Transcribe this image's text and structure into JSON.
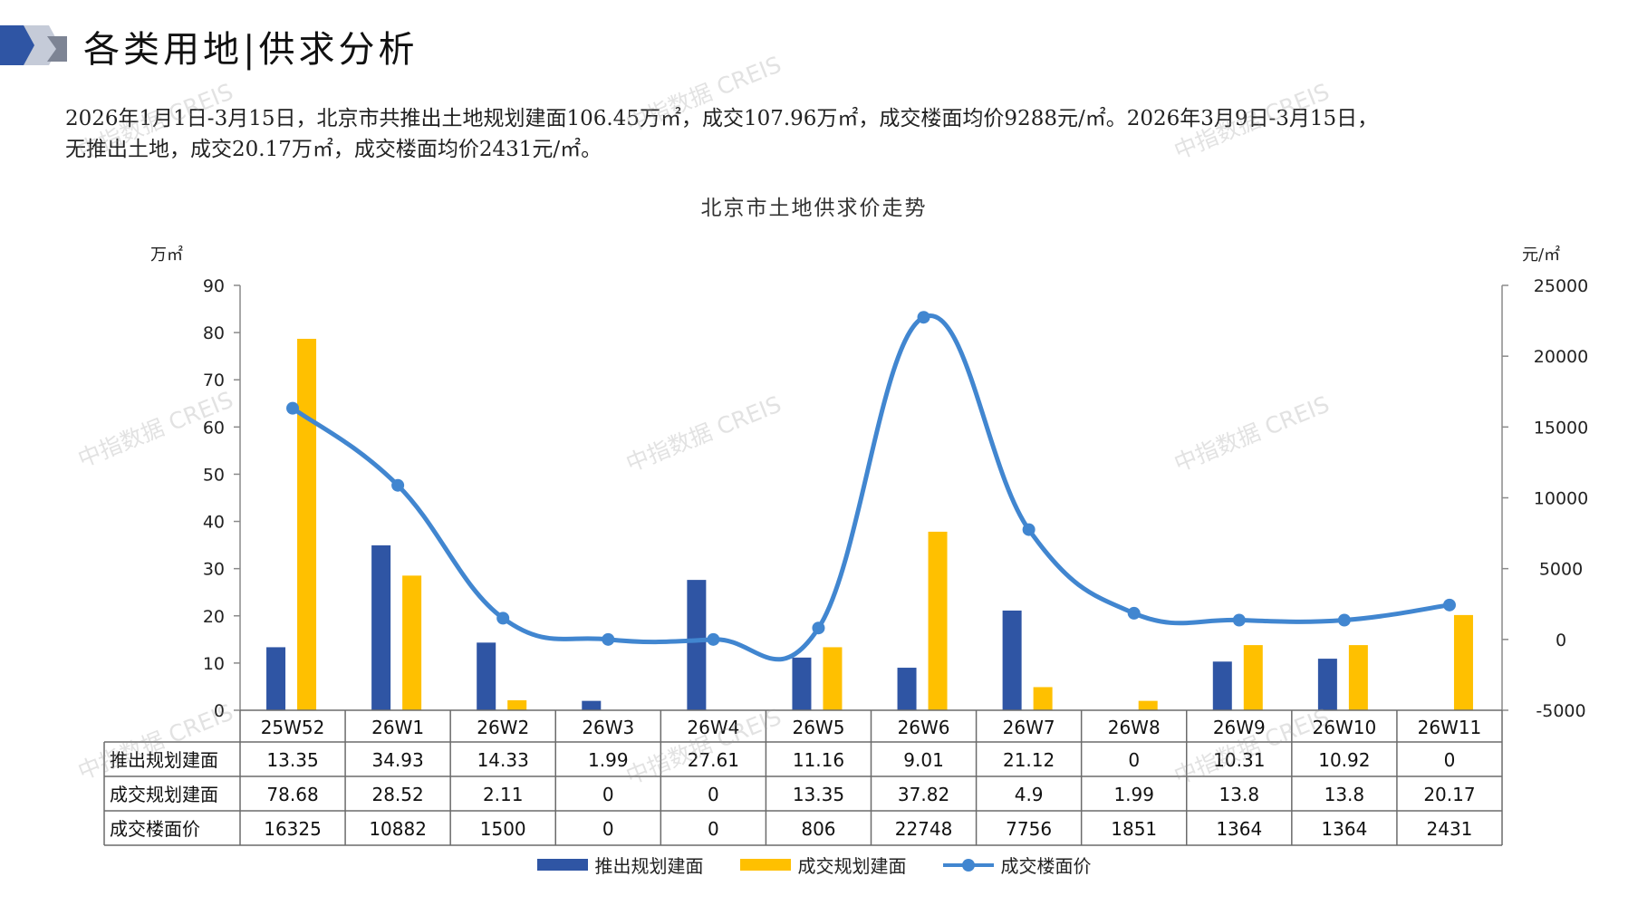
{
  "header": {
    "title": "各类用地|供求分析"
  },
  "summary": {
    "line1": "2026年1月1日-3月15日，北京市共推出土地规划建面106.45万㎡，成交107.96万㎡，成交楼面均价9288元/㎡。2026年3月9日-3月15日，",
    "line2": "无推出土地，成交20.17万㎡，成交楼面均价2431元/㎡。"
  },
  "watermark": "中指数据 CREIS",
  "colors": {
    "supply": "#2f55a4",
    "transaction": "#ffc000",
    "price": "#4186d0",
    "header_accent": "#2f55a4"
  },
  "chart_data": {
    "type": "bar",
    "title": "北京市土地供求价走势",
    "ylabel_left": "万㎡",
    "ylabel_right": "元/㎡",
    "ylim_left": [
      0,
      90
    ],
    "yticks_left": [
      0,
      10,
      20,
      30,
      40,
      50,
      60,
      70,
      80,
      90
    ],
    "ylim_right": [
      -5000,
      25000
    ],
    "yticks_right": [
      -5000,
      0,
      5000,
      10000,
      15000,
      20000,
      25000
    ],
    "categories": [
      "25W52",
      "26W1",
      "26W2",
      "26W3",
      "26W4",
      "26W5",
      "26W6",
      "26W7",
      "26W8",
      "26W9",
      "26W10",
      "26W11"
    ],
    "series": [
      {
        "name": "推出规划建面",
        "kind": "bar",
        "axis": "left",
        "color": "#2f55a4",
        "values": [
          13.35,
          34.93,
          14.33,
          1.99,
          27.61,
          11.16,
          9.01,
          21.12,
          0,
          10.31,
          10.92,
          0
        ],
        "labels": [
          "13.35",
          "34.93",
          "14.33",
          "1.99",
          "27.61",
          "11.16",
          "9.01",
          "21.12",
          "0",
          "10.31",
          "10.92",
          "0"
        ]
      },
      {
        "name": "成交规划建面",
        "kind": "bar",
        "axis": "left",
        "color": "#ffc000",
        "values": [
          78.68,
          28.52,
          2.11,
          0,
          0,
          13.35,
          37.82,
          4.9,
          1.99,
          13.8,
          13.8,
          20.17
        ],
        "labels": [
          "78.68",
          "28.52",
          "2.11",
          "0",
          "0",
          "13.35",
          "37.82",
          "4.9",
          "1.99",
          "13.8",
          "13.8",
          "20.17"
        ]
      },
      {
        "name": "成交楼面价",
        "kind": "line",
        "axis": "right",
        "color": "#4186d0",
        "values": [
          16325,
          10882,
          1500,
          0,
          0,
          806,
          22748,
          7756,
          1851,
          1364,
          1364,
          2431
        ],
        "labels": [
          "16325",
          "10882",
          "1500",
          "0",
          "0",
          "806",
          "22748",
          "7756",
          "1851",
          "1364",
          "1364",
          "2431"
        ]
      }
    ],
    "legend_position": "bottom",
    "grid": false,
    "data_table": true
  }
}
